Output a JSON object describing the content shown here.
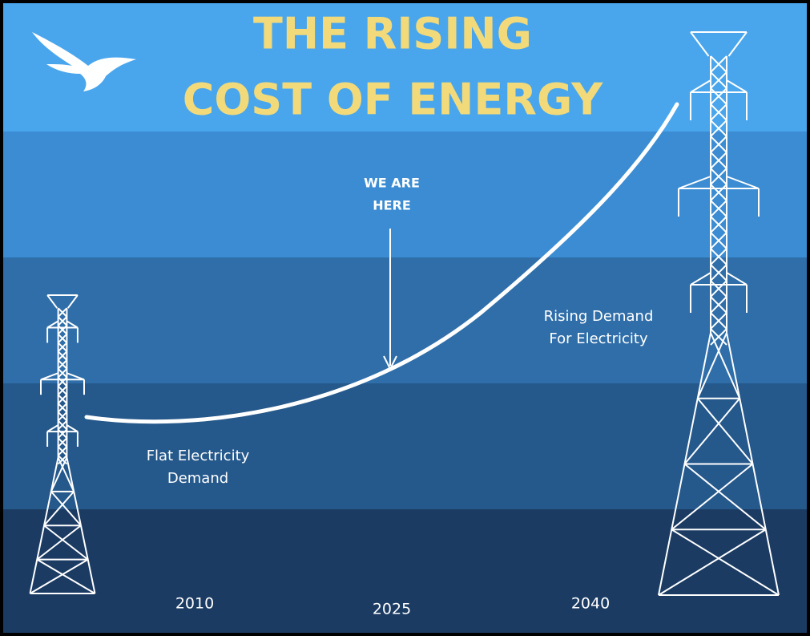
{
  "header": {
    "title": [
      "THE RISING",
      "COST OF ENERGY"
    ]
  },
  "annotations": {
    "we_are_here": [
      "WE ARE",
      "HERE"
    ],
    "rising": [
      "Rising Demand",
      "For Electricity"
    ],
    "flat": [
      "Flat Electricity",
      "Demand"
    ]
  },
  "years": [
    "2010",
    "2025",
    "2040"
  ]
}
